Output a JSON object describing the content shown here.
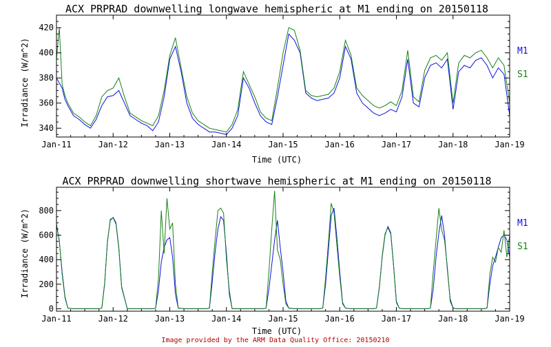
{
  "colors": {
    "m1": "#1010e0",
    "s1": "#168016",
    "credit": "#b00000",
    "axis": "#000000"
  },
  "legend": {
    "m1": "M1",
    "s1": "S1"
  },
  "credit": "Image provided by the ARM Data Quality Office: 20150210",
  "chart_data": [
    {
      "type": "line",
      "title": "ACX PRPRAD downwelling longwave hemispheric at M1 ending on 20150118",
      "xlabel": "Time (UTC)",
      "ylabel": "Irradiance (W/m^2)",
      "x_ticks": [
        "Jan-11",
        "Jan-12",
        "Jan-13",
        "Jan-14",
        "Jan-15",
        "Jan-16",
        "Jan-17",
        "Jan-18",
        "Jan-19"
      ],
      "xlim": [
        0,
        8
      ],
      "ylim": [
        333,
        430
      ],
      "y_ticks": [
        340,
        360,
        380,
        400,
        420
      ],
      "series": [
        {
          "name": "M1",
          "x": [
            0,
            0.05,
            0.1,
            0.15,
            0.2,
            0.3,
            0.4,
            0.5,
            0.6,
            0.7,
            0.8,
            0.9,
            1.0,
            1.1,
            1.2,
            1.3,
            1.4,
            1.5,
            1.6,
            1.7,
            1.8,
            1.9,
            2.0,
            2.1,
            2.2,
            2.3,
            2.4,
            2.5,
            2.6,
            2.7,
            2.8,
            2.9,
            3.0,
            3.1,
            3.2,
            3.3,
            3.4,
            3.5,
            3.6,
            3.7,
            3.8,
            3.9,
            4.0,
            4.1,
            4.2,
            4.3,
            4.4,
            4.5,
            4.6,
            4.7,
            4.8,
            4.9,
            5.0,
            5.1,
            5.2,
            5.3,
            5.4,
            5.5,
            5.6,
            5.7,
            5.8,
            5.9,
            6.0,
            6.1,
            6.2,
            6.3,
            6.4,
            6.5,
            6.6,
            6.7,
            6.8,
            6.9,
            7.0,
            7.1,
            7.2,
            7.3,
            7.4,
            7.5,
            7.6,
            7.7,
            7.8,
            7.9,
            8.0
          ],
          "values": [
            380,
            376,
            372,
            363,
            358,
            350,
            347,
            343,
            340,
            347,
            358,
            365,
            366,
            370,
            360,
            350,
            347,
            344,
            342,
            338,
            345,
            365,
            395,
            405,
            385,
            360,
            348,
            343,
            340,
            337,
            337,
            336,
            335,
            340,
            350,
            380,
            372,
            360,
            350,
            345,
            343,
            365,
            390,
            415,
            410,
            400,
            368,
            364,
            362,
            363,
            364,
            368,
            380,
            405,
            395,
            368,
            360,
            356,
            352,
            350,
            352,
            355,
            353,
            365,
            395,
            360,
            357,
            380,
            390,
            392,
            388,
            395,
            355,
            385,
            390,
            388,
            394,
            396,
            390,
            380,
            388,
            383,
            350
          ]
        },
        {
          "name": "S1",
          "x": [
            0,
            0.05,
            0.1,
            0.15,
            0.2,
            0.3,
            0.4,
            0.5,
            0.6,
            0.7,
            0.8,
            0.9,
            1.0,
            1.1,
            1.2,
            1.3,
            1.4,
            1.5,
            1.6,
            1.7,
            1.8,
            1.9,
            2.0,
            2.1,
            2.2,
            2.3,
            2.4,
            2.5,
            2.6,
            2.7,
            2.8,
            2.9,
            3.0,
            3.1,
            3.2,
            3.3,
            3.4,
            3.5,
            3.6,
            3.7,
            3.8,
            3.9,
            4.0,
            4.1,
            4.2,
            4.3,
            4.4,
            4.5,
            4.6,
            4.7,
            4.8,
            4.9,
            5.0,
            5.1,
            5.2,
            5.3,
            5.4,
            5.5,
            5.6,
            5.7,
            5.8,
            5.9,
            6.0,
            6.1,
            6.2,
            6.3,
            6.4,
            6.5,
            6.6,
            6.7,
            6.8,
            6.9,
            7.0,
            7.1,
            7.2,
            7.3,
            7.4,
            7.5,
            7.6,
            7.7,
            7.8,
            7.9,
            8.0
          ],
          "values": [
            395,
            420,
            375,
            366,
            360,
            352,
            349,
            345,
            342,
            350,
            365,
            370,
            372,
            380,
            365,
            352,
            349,
            346,
            344,
            342,
            350,
            370,
            398,
            412,
            388,
            365,
            352,
            346,
            343,
            340,
            339,
            338,
            337,
            343,
            355,
            385,
            375,
            365,
            353,
            348,
            346,
            372,
            400,
            420,
            418,
            402,
            370,
            366,
            365,
            366,
            367,
            372,
            385,
            410,
            398,
            372,
            366,
            362,
            358,
            356,
            358,
            361,
            358,
            370,
            402,
            365,
            361,
            386,
            396,
            398,
            394,
            400,
            360,
            392,
            398,
            396,
            400,
            402,
            396,
            388,
            396,
            390,
            360
          ]
        }
      ]
    },
    {
      "type": "line",
      "title": "ACX PRPRAD downwelling shortwave hemispheric at M1 ending on 20150118",
      "xlabel": "Time (UTC)",
      "ylabel": "Irradiance (W/m^2)",
      "x_ticks": [
        "Jan-11",
        "Jan-12",
        "Jan-13",
        "Jan-14",
        "Jan-15",
        "Jan-16",
        "Jan-17",
        "Jan-18",
        "Jan-19"
      ],
      "xlim": [
        0,
        8
      ],
      "ylim": [
        -20,
        990
      ],
      "y_ticks": [
        0,
        200,
        400,
        600,
        800
      ],
      "series": [
        {
          "name": "M1",
          "x": [
            0,
            0.05,
            0.1,
            0.15,
            0.2,
            0.3,
            0.75,
            0.8,
            0.85,
            0.9,
            0.95,
            1.0,
            1.05,
            1.1,
            1.15,
            1.25,
            1.7,
            1.75,
            1.8,
            1.85,
            1.9,
            1.95,
            2.0,
            2.05,
            2.1,
            2.15,
            2.25,
            2.65,
            2.7,
            2.75,
            2.8,
            2.85,
            2.9,
            2.95,
            3.0,
            3.05,
            3.1,
            3.2,
            3.65,
            3.7,
            3.75,
            3.8,
            3.85,
            3.9,
            3.95,
            4.0,
            4.05,
            4.1,
            4.2,
            4.65,
            4.7,
            4.75,
            4.8,
            4.85,
            4.9,
            4.95,
            5.0,
            5.05,
            5.1,
            5.2,
            5.6,
            5.65,
            5.7,
            5.75,
            5.8,
            5.85,
            5.9,
            5.95,
            6.0,
            6.05,
            6.1,
            6.55,
            6.6,
            6.65,
            6.7,
            6.75,
            6.8,
            6.85,
            6.9,
            6.95,
            7.0,
            7.05,
            7.1,
            7.55,
            7.6,
            7.65,
            7.7,
            7.75,
            7.8,
            7.85,
            7.9,
            7.95,
            8.0
          ],
          "values": [
            690,
            550,
            300,
            100,
            5,
            0,
            0,
            5,
            200,
            550,
            720,
            745,
            700,
            500,
            180,
            0,
            0,
            5,
            150,
            380,
            500,
            560,
            580,
            420,
            120,
            5,
            0,
            0,
            5,
            220,
            460,
            650,
            750,
            720,
            450,
            120,
            0,
            0,
            0,
            5,
            160,
            360,
            560,
            720,
            500,
            300,
            60,
            5,
            0,
            0,
            5,
            200,
            480,
            760,
            820,
            580,
            300,
            50,
            5,
            0,
            0,
            5,
            180,
            420,
            600,
            670,
            620,
            360,
            60,
            5,
            0,
            0,
            5,
            160,
            420,
            620,
            760,
            600,
            320,
            80,
            5,
            0,
            0,
            0,
            5,
            200,
            350,
            420,
            500,
            580,
            600,
            560,
            420
          ]
        },
        {
          "name": "S1",
          "x": [
            0,
            0.05,
            0.1,
            0.15,
            0.2,
            0.3,
            0.75,
            0.8,
            0.85,
            0.9,
            0.95,
            1.0,
            1.05,
            1.1,
            1.15,
            1.25,
            1.7,
            1.75,
            1.8,
            1.85,
            1.9,
            1.95,
            2.0,
            2.05,
            2.1,
            2.15,
            2.25,
            2.65,
            2.7,
            2.75,
            2.8,
            2.85,
            2.9,
            2.95,
            3.0,
            3.05,
            3.1,
            3.2,
            3.65,
            3.7,
            3.75,
            3.8,
            3.85,
            3.9,
            3.95,
            4.0,
            4.05,
            4.1,
            4.2,
            4.65,
            4.7,
            4.75,
            4.8,
            4.85,
            4.9,
            4.95,
            5.0,
            5.05,
            5.1,
            5.2,
            5.6,
            5.65,
            5.7,
            5.75,
            5.8,
            5.85,
            5.9,
            5.95,
            6.0,
            6.05,
            6.1,
            6.55,
            6.6,
            6.65,
            6.7,
            6.75,
            6.8,
            6.85,
            6.9,
            6.95,
            7.0,
            7.05,
            7.1,
            7.55,
            7.6,
            7.65,
            7.7,
            7.75,
            7.8,
            7.85,
            7.9,
            7.95,
            8.0
          ],
          "values": [
            680,
            560,
            280,
            90,
            5,
            0,
            0,
            5,
            210,
            540,
            730,
            740,
            690,
            490,
            170,
            0,
            0,
            5,
            250,
            800,
            450,
            900,
            650,
            700,
            200,
            5,
            0,
            0,
            5,
            300,
            560,
            800,
            820,
            780,
            400,
            150,
            0,
            0,
            0,
            5,
            300,
            650,
            960,
            480,
            400,
            200,
            40,
            5,
            0,
            0,
            5,
            250,
            540,
            860,
            780,
            520,
            260,
            40,
            5,
            0,
            0,
            5,
            170,
            430,
            610,
            660,
            610,
            350,
            50,
            5,
            0,
            0,
            5,
            300,
            560,
            820,
            640,
            560,
            340,
            60,
            5,
            0,
            0,
            0,
            5,
            280,
            420,
            380,
            500,
            460,
            640,
            420,
            600
          ]
        }
      ]
    }
  ]
}
